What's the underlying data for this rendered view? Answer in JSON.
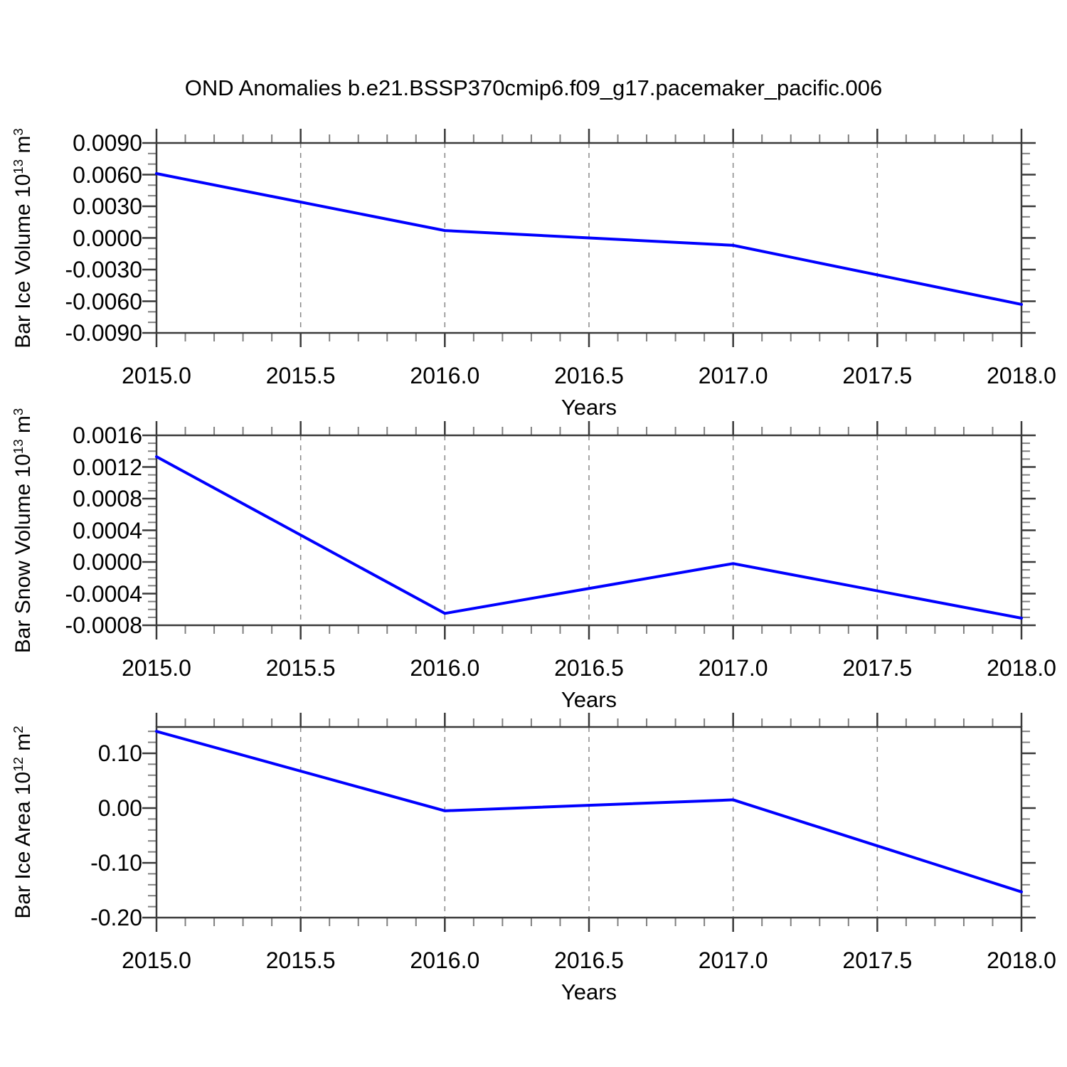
{
  "page": {
    "title": "OND Anomalies b.e21.BSSP370cmip6.f09_g17.pacemaker_pacific.006"
  },
  "chart_data": [
    {
      "type": "line",
      "title": "OND Anomalies b.e21.BSSP370cmip6.f09_g17.pacemaker_pacific.006",
      "ylabel": "Bar Ice Volume 10^13 m^3",
      "ylabel_parts": {
        "base": "Bar Ice Volume 10",
        "exp": "13",
        "unit": " m",
        "unit_exp": "3"
      },
      "xlabel": "Years",
      "x": [
        2015.0,
        2016.0,
        2017.0,
        2018.0
      ],
      "values": [
        0.0061,
        0.0007,
        -0.0007,
        -0.0063
      ],
      "xlim": [
        2015.0,
        2018.0
      ],
      "ylim": [
        -0.009,
        0.009
      ],
      "xticks_major": [
        2015.0,
        2015.5,
        2016.0,
        2016.5,
        2017.0,
        2017.5,
        2018.0
      ],
      "xtick_labels": [
        "2015.0",
        "2015.5",
        "2016.0",
        "2016.5",
        "2017.0",
        "2017.5",
        "2018.0"
      ],
      "xtick_minor_step": 0.1,
      "yticks_major": [
        0.009,
        0.006,
        0.003,
        0.0,
        -0.003,
        -0.006,
        -0.009
      ],
      "ytick_labels": [
        "0.0090",
        "0.0060",
        "0.0030",
        "0.0000",
        "-0.0030",
        "-0.0060",
        "-0.0090"
      ],
      "ytick_minor_step": 0.001,
      "gridlines_x": [
        2015.5,
        2016.0,
        2016.5,
        2017.0,
        2017.5
      ],
      "grid_style": "vertical-dashed",
      "line_color": "#0000ff"
    },
    {
      "type": "line",
      "title": "",
      "ylabel": "Bar Snow Volume 10^13 m^3",
      "ylabel_parts": {
        "base": "Bar Snow Volume 10",
        "exp": "13",
        "unit": " m",
        "unit_exp": "3"
      },
      "xlabel": "Years",
      "x": [
        2015.0,
        2016.0,
        2017.0,
        2018.0
      ],
      "values": [
        0.00133,
        -0.00065,
        -2e-05,
        -0.00071
      ],
      "xlim": [
        2015.0,
        2018.0
      ],
      "ylim": [
        -0.0008,
        0.0016
      ],
      "xticks_major": [
        2015.0,
        2015.5,
        2016.0,
        2016.5,
        2017.0,
        2017.5,
        2018.0
      ],
      "xtick_labels": [
        "2015.0",
        "2015.5",
        "2016.0",
        "2016.5",
        "2017.0",
        "2017.5",
        "2018.0"
      ],
      "xtick_minor_step": 0.1,
      "yticks_major": [
        0.0016,
        0.0012,
        0.0008,
        0.0004,
        0.0,
        -0.0004,
        -0.0008
      ],
      "ytick_labels": [
        "0.0016",
        "0.0012",
        "0.0008",
        "0.0004",
        "0.0000",
        "-0.0004",
        "-0.0008"
      ],
      "ytick_minor_step": 0.0001,
      "gridlines_x": [
        2015.5,
        2016.0,
        2016.5,
        2017.0,
        2017.5
      ],
      "grid_style": "vertical-dashed",
      "line_color": "#0000ff"
    },
    {
      "type": "line",
      "title": "",
      "ylabel": "Bar Ice Area 10^12 m^2",
      "ylabel_parts": {
        "base": "Bar Ice Area 10",
        "exp": "12",
        "unit": " m",
        "unit_exp": "2"
      },
      "xlabel": "Years",
      "x": [
        2015.0,
        2016.0,
        2017.0,
        2018.0
      ],
      "values": [
        0.14,
        -0.005,
        0.015,
        -0.153
      ],
      "xlim": [
        2015.0,
        2018.0
      ],
      "ylim": [
        -0.2,
        0.148
      ],
      "xticks_major": [
        2015.0,
        2015.5,
        2016.0,
        2016.5,
        2017.0,
        2017.5,
        2018.0
      ],
      "xtick_labels": [
        "2015.0",
        "2015.5",
        "2016.0",
        "2016.5",
        "2017.0",
        "2017.5",
        "2018.0"
      ],
      "xtick_minor_step": 0.1,
      "yticks_major": [
        0.1,
        0.0,
        -0.1,
        -0.2
      ],
      "ytick_labels": [
        "0.10",
        "0.00",
        "-0.10",
        "-0.20"
      ],
      "ytick_minor_step": 0.02,
      "gridlines_x": [
        2015.5,
        2016.0,
        2016.5,
        2017.0,
        2017.5
      ],
      "grid_style": "vertical-dashed",
      "line_color": "#0000ff"
    }
  ]
}
